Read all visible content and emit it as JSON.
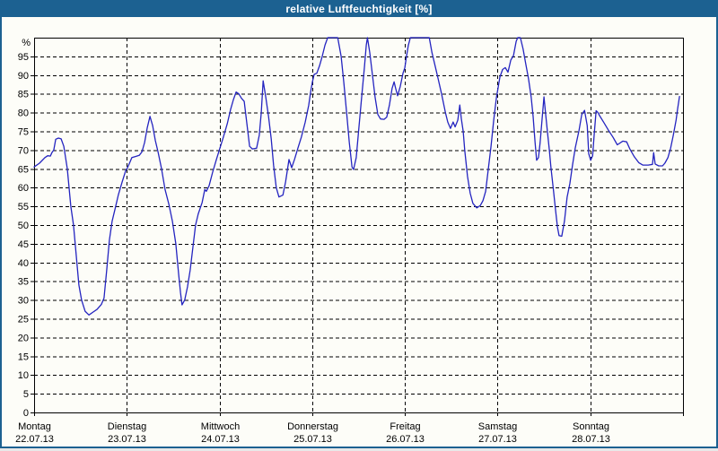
{
  "window": {
    "title": "relative Luftfeuchtigkeit [%]"
  },
  "colors": {
    "titlebar_bg": "#1c6191",
    "window_border": "#1c6191",
    "background": "#fdfdf8",
    "grid": "#000000",
    "axis": "#000000",
    "text": "#000000",
    "title_text": "#ffffff",
    "line": "#2424c0"
  },
  "chart_data": {
    "type": "line",
    "title": "relative Luftfeuchtigkeit [%]",
    "ylabel": "%",
    "ylim": [
      0,
      100
    ],
    "y_tick_step": 5,
    "y_ticks": [
      0,
      5,
      10,
      15,
      20,
      25,
      30,
      35,
      40,
      45,
      50,
      55,
      60,
      65,
      70,
      75,
      80,
      85,
      90,
      95
    ],
    "grid": "dashed",
    "legend": "none",
    "x_range_hours": [
      0,
      168
    ],
    "hours_per_day": 24,
    "x_days": [
      {
        "name": "Montag",
        "date": "22.07.13"
      },
      {
        "name": "Dienstag",
        "date": "23.07.13"
      },
      {
        "name": "Mittwoch",
        "date": "24.07.13"
      },
      {
        "name": "Donnerstag",
        "date": "25.07.13"
      },
      {
        "name": "Freitag",
        "date": "26.07.13"
      },
      {
        "name": "Samstag",
        "date": "27.07.13"
      },
      {
        "name": "Sonntag",
        "date": "28.07.13"
      }
    ],
    "series": [
      {
        "name": "relative Luftfeuchtigkeit",
        "unit": "%",
        "color": "#2424c0",
        "points": [
          [
            0,
            65.5
          ],
          [
            1.4,
            66.5
          ],
          [
            2.8,
            68
          ],
          [
            3.5,
            68.5
          ],
          [
            4.2,
            68.4
          ],
          [
            4.6,
            69.3
          ],
          [
            5.1,
            70
          ],
          [
            5.6,
            72.9
          ],
          [
            6.3,
            73.2
          ],
          [
            7,
            73
          ],
          [
            7.7,
            71
          ],
          [
            8.6,
            65
          ],
          [
            9.5,
            55
          ],
          [
            10.2,
            50
          ],
          [
            10.9,
            42
          ],
          [
            11.6,
            34
          ],
          [
            12.3,
            30
          ],
          [
            13.2,
            27
          ],
          [
            14.2,
            26
          ],
          [
            15.3,
            26.8
          ],
          [
            16.3,
            27.5
          ],
          [
            17.4,
            28.8
          ],
          [
            18.1,
            30.5
          ],
          [
            18.8,
            38
          ],
          [
            19.5,
            46
          ],
          [
            20.2,
            51
          ],
          [
            20.9,
            54
          ],
          [
            21.8,
            58
          ],
          [
            22.8,
            61.5
          ],
          [
            23.7,
            64.5
          ],
          [
            24.2,
            65.3
          ],
          [
            24.9,
            67
          ],
          [
            25.3,
            68
          ],
          [
            26.3,
            68.3
          ],
          [
            27.2,
            68.6
          ],
          [
            27.9,
            69.5
          ],
          [
            28.6,
            72
          ],
          [
            29.3,
            76
          ],
          [
            30,
            79
          ],
          [
            30.7,
            76.5
          ],
          [
            31.4,
            72.5
          ],
          [
            32.1,
            69.5
          ],
          [
            33,
            65
          ],
          [
            33.9,
            59.5
          ],
          [
            34.9,
            55.5
          ],
          [
            35.8,
            51
          ],
          [
            36.7,
            45
          ],
          [
            37.4,
            37
          ],
          [
            37.9,
            32
          ],
          [
            38.3,
            28.7
          ],
          [
            39,
            30
          ],
          [
            39.7,
            33.5
          ],
          [
            40.4,
            38
          ],
          [
            41.1,
            44
          ],
          [
            41.8,
            50
          ],
          [
            42.5,
            53
          ],
          [
            43.5,
            56
          ],
          [
            44.2,
            59.5
          ],
          [
            44.6,
            59
          ],
          [
            45.3,
            60.5
          ],
          [
            46.2,
            64
          ],
          [
            47.2,
            67.5
          ],
          [
            48.1,
            70.5
          ],
          [
            49,
            73.5
          ],
          [
            50,
            77
          ],
          [
            50.9,
            81
          ],
          [
            51.6,
            83.5
          ],
          [
            52.3,
            85.5
          ],
          [
            53,
            85
          ],
          [
            53.7,
            83.8
          ],
          [
            54.4,
            83
          ],
          [
            55.1,
            77
          ],
          [
            55.8,
            71
          ],
          [
            56.5,
            70.3
          ],
          [
            57.6,
            70.5
          ],
          [
            58.3,
            74
          ],
          [
            58.8,
            80
          ],
          [
            59.3,
            88.5
          ],
          [
            60,
            84
          ],
          [
            60.7,
            79
          ],
          [
            61.4,
            73
          ],
          [
            62,
            66
          ],
          [
            62.7,
            60
          ],
          [
            63.4,
            57.5
          ],
          [
            64.4,
            58
          ],
          [
            65.1,
            61.5
          ],
          [
            66,
            67.5
          ],
          [
            66.7,
            65.3
          ],
          [
            67.4,
            67.5
          ],
          [
            68.3,
            70.5
          ],
          [
            69.2,
            73.5
          ],
          [
            70.2,
            77.5
          ],
          [
            71.1,
            82
          ],
          [
            71.6,
            85.5
          ],
          [
            72,
            88
          ],
          [
            72.5,
            90.2
          ],
          [
            73.2,
            90.5
          ],
          [
            73.9,
            92.5
          ],
          [
            74.6,
            95
          ],
          [
            75.3,
            98
          ],
          [
            76,
            100
          ],
          [
            77.3,
            100
          ],
          [
            78.6,
            100
          ],
          [
            79.5,
            95
          ],
          [
            80.2,
            88
          ],
          [
            80.9,
            80
          ],
          [
            81.6,
            72
          ],
          [
            82.3,
            65.5
          ],
          [
            82.7,
            64.8
          ],
          [
            83.4,
            68
          ],
          [
            84.1,
            76
          ],
          [
            84.8,
            84
          ],
          [
            85.5,
            92
          ],
          [
            86,
            98
          ],
          [
            86.3,
            100
          ],
          [
            86.9,
            96
          ],
          [
            87.6,
            90
          ],
          [
            88.3,
            84
          ],
          [
            89,
            79.5
          ],
          [
            89.7,
            78.3
          ],
          [
            90.6,
            78.2
          ],
          [
            91.3,
            78.8
          ],
          [
            92,
            82
          ],
          [
            92.7,
            86.5
          ],
          [
            93.2,
            88.2
          ],
          [
            93.6,
            86.5
          ],
          [
            94.1,
            84.5
          ],
          [
            94.8,
            87
          ],
          [
            95.5,
            90.5
          ],
          [
            96,
            92
          ],
          [
            96.4,
            95
          ],
          [
            96.9,
            98
          ],
          [
            97.4,
            100
          ],
          [
            99.5,
            100
          ],
          [
            102.3,
            100
          ],
          [
            103,
            96
          ],
          [
            103.7,
            93
          ],
          [
            104.6,
            89
          ],
          [
            105.5,
            85
          ],
          [
            106.5,
            80
          ],
          [
            107.1,
            77.5
          ],
          [
            107.8,
            75.8
          ],
          [
            108.5,
            77.5
          ],
          [
            109,
            76.2
          ],
          [
            109.7,
            78
          ],
          [
            110.2,
            82
          ],
          [
            110.6,
            78.4
          ],
          [
            111.1,
            75
          ],
          [
            111.5,
            70
          ],
          [
            112.2,
            63
          ],
          [
            112.9,
            58.5
          ],
          [
            113.6,
            55.8
          ],
          [
            114.6,
            54.6
          ],
          [
            115.5,
            55.2
          ],
          [
            116.2,
            56.5
          ],
          [
            116.9,
            59
          ],
          [
            117.6,
            65
          ],
          [
            118.3,
            71
          ],
          [
            119,
            78
          ],
          [
            119.7,
            84
          ],
          [
            120.1,
            86.5
          ],
          [
            120.6,
            89.5
          ],
          [
            121.3,
            91.5
          ],
          [
            122,
            92
          ],
          [
            122.7,
            90.8
          ],
          [
            123.4,
            94
          ],
          [
            124.1,
            95.2
          ],
          [
            124.8,
            99
          ],
          [
            125.2,
            100
          ],
          [
            125.9,
            100
          ],
          [
            126.6,
            97
          ],
          [
            127.3,
            93
          ],
          [
            128,
            89
          ],
          [
            128.7,
            84
          ],
          [
            129.2,
            79
          ],
          [
            129.7,
            72
          ],
          [
            130.1,
            67.3
          ],
          [
            130.6,
            68
          ],
          [
            131,
            72
          ],
          [
            131.5,
            78
          ],
          [
            132,
            84.2
          ],
          [
            132.4,
            80
          ],
          [
            132.9,
            75
          ],
          [
            133.4,
            70
          ],
          [
            133.8,
            65.5
          ],
          [
            134.5,
            59
          ],
          [
            135,
            54
          ],
          [
            135.5,
            49.5
          ],
          [
            135.9,
            47.2
          ],
          [
            136.6,
            47
          ],
          [
            137.3,
            51
          ],
          [
            138,
            57.5
          ],
          [
            138.7,
            61
          ],
          [
            139.4,
            66
          ],
          [
            140.1,
            70.5
          ],
          [
            141.1,
            75.3
          ],
          [
            141.8,
            79.5
          ],
          [
            142.5,
            80.6
          ],
          [
            143.2,
            76.5
          ],
          [
            143.6,
            69
          ],
          [
            144.1,
            67.3
          ],
          [
            144.6,
            68.5
          ],
          [
            145,
            74
          ],
          [
            145.5,
            80.5
          ],
          [
            146,
            80
          ],
          [
            146.4,
            79.2
          ],
          [
            147.6,
            77.2
          ],
          [
            148.7,
            75.3
          ],
          [
            149.9,
            73.4
          ],
          [
            151,
            71.4
          ],
          [
            152.4,
            72.4
          ],
          [
            153.4,
            72.2
          ],
          [
            154.3,
            70.2
          ],
          [
            155.4,
            68.2
          ],
          [
            156.6,
            66.6
          ],
          [
            157.6,
            66
          ],
          [
            159,
            66
          ],
          [
            160.1,
            66.2
          ],
          [
            160.4,
            69.3
          ],
          [
            160.8,
            66.3
          ],
          [
            161.7,
            65.8
          ],
          [
            162.7,
            65.8
          ],
          [
            163.3,
            66.5
          ],
          [
            164.1,
            68
          ],
          [
            164.8,
            70.5
          ],
          [
            165.5,
            74
          ],
          [
            166.2,
            78
          ],
          [
            166.6,
            81
          ],
          [
            167.1,
            84.3
          ]
        ]
      }
    ]
  }
}
